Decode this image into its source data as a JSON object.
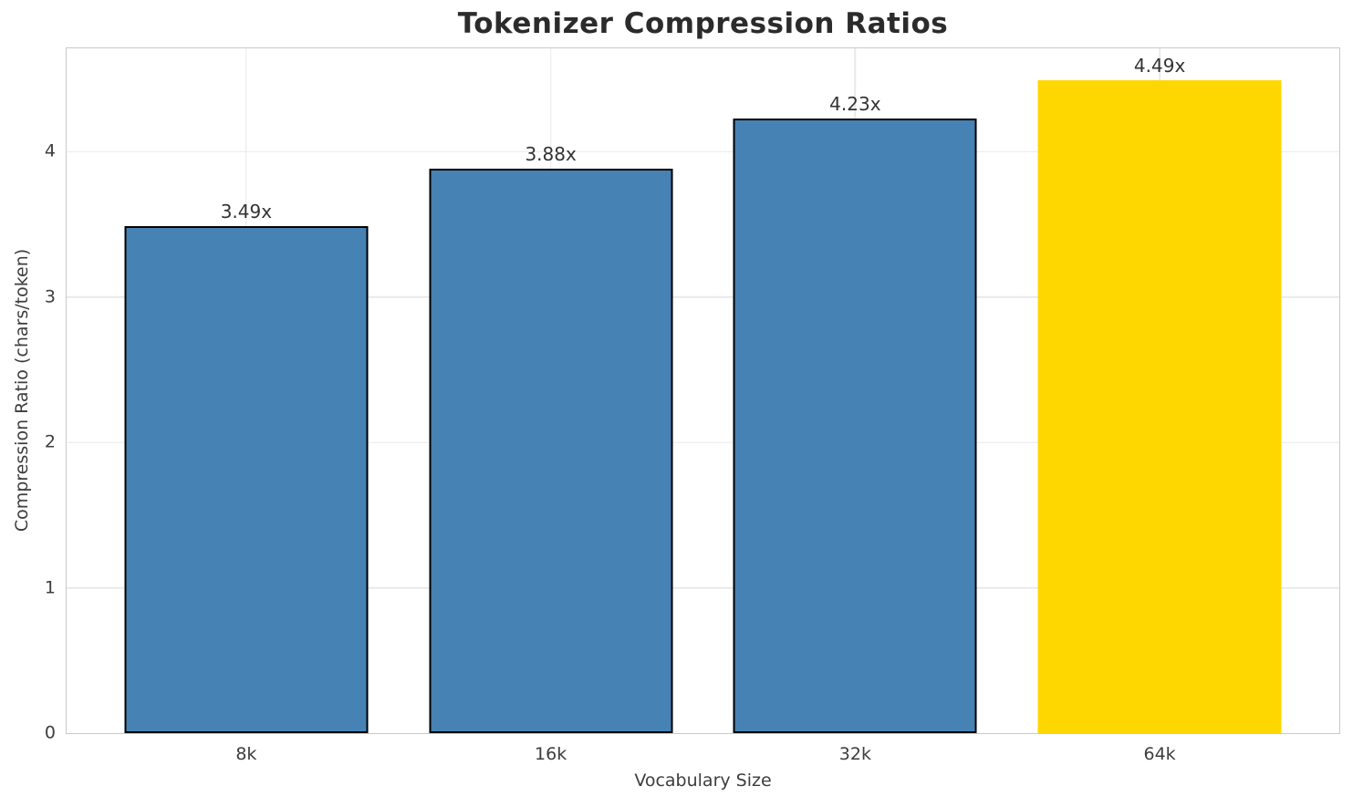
{
  "chart_data": {
    "type": "bar",
    "title": "Tokenizer Compression Ratios",
    "xlabel": "Vocabulary Size",
    "ylabel": "Compression Ratio (chars/token)",
    "categories": [
      "8k",
      "16k",
      "32k",
      "64k"
    ],
    "values": [
      3.49,
      3.88,
      4.23,
      4.49
    ],
    "bar_labels": [
      "3.49x",
      "3.88x",
      "4.23x",
      "4.49x"
    ],
    "bar_colors": [
      "#4682b4",
      "#4682b4",
      "#4682b4",
      "#ffd700"
    ],
    "bar_edge_colors": [
      "#000000",
      "#000000",
      "#000000",
      "none"
    ],
    "yticks": [
      0,
      1,
      2,
      3,
      4
    ],
    "ylim": [
      0,
      4.71
    ],
    "xlim": [
      -0.59,
      3.59
    ],
    "bar_width_data_units": 0.8,
    "grid": true,
    "legend": "none",
    "colors": {
      "default_bar": "#4682b4",
      "highlight_bar": "#ffd700",
      "bar_edge": "#000000",
      "grid_line": "#e9e9e9",
      "spine": "#c9c9c9",
      "title_text": "#2b2b2b",
      "label_text": "#3d3d3d"
    }
  }
}
